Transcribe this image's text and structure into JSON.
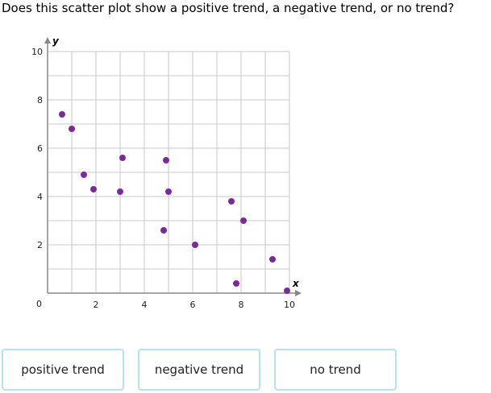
{
  "question": "Does this scatter plot show a positive trend, a negative trend, or no trend?",
  "choices": [
    "positive trend",
    "negative trend",
    "no trend"
  ],
  "colors": {
    "point": "#7b2a9e",
    "grid": "#c8c8c8",
    "axis": "#888888",
    "choice_border": "#b7e2f0"
  },
  "chart_data": {
    "type": "scatter",
    "xlabel": "x",
    "ylabel": "y",
    "xlim": [
      0,
      10
    ],
    "ylim": [
      0,
      10
    ],
    "grid": true,
    "xticks": [
      2,
      4,
      6,
      8,
      10
    ],
    "yticks": [
      2,
      4,
      6,
      8,
      10
    ],
    "origin_label": "0",
    "points": [
      {
        "x": 0.6,
        "y": 7.4
      },
      {
        "x": 1.0,
        "y": 6.8
      },
      {
        "x": 1.5,
        "y": 4.9
      },
      {
        "x": 1.9,
        "y": 4.3
      },
      {
        "x": 3.0,
        "y": 4.2
      },
      {
        "x": 3.1,
        "y": 5.6
      },
      {
        "x": 4.8,
        "y": 2.6
      },
      {
        "x": 4.9,
        "y": 5.5
      },
      {
        "x": 5.0,
        "y": 4.2
      },
      {
        "x": 6.1,
        "y": 2.0
      },
      {
        "x": 7.6,
        "y": 3.8
      },
      {
        "x": 7.8,
        "y": 0.4
      },
      {
        "x": 8.1,
        "y": 3.0
      },
      {
        "x": 9.3,
        "y": 1.4
      },
      {
        "x": 9.9,
        "y": 0.1
      }
    ]
  }
}
